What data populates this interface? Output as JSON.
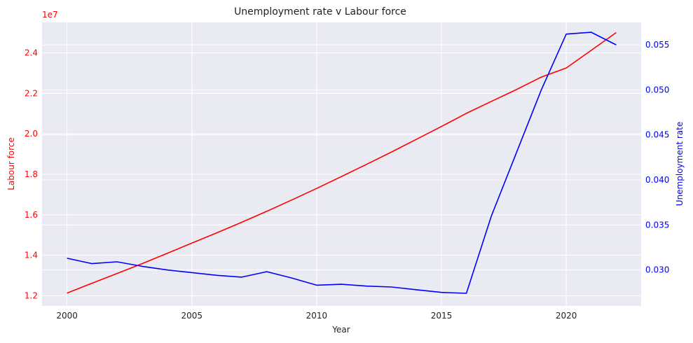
{
  "chart_data": {
    "type": "line",
    "title": "Unemployment rate v Labour force",
    "xlabel": "Year",
    "ylabel_left": "Labour force",
    "ylabel_right": "Unemployment rate",
    "left_axis_multiplier": "1e7",
    "x": [
      2000,
      2001,
      2002,
      2003,
      2004,
      2005,
      2006,
      2007,
      2008,
      2009,
      2010,
      2011,
      2012,
      2013,
      2014,
      2015,
      2016,
      2017,
      2018,
      2019,
      2020,
      2021,
      2022
    ],
    "xlim": [
      1999,
      2023
    ],
    "x_ticks": [
      2000,
      2005,
      2010,
      2015,
      2020
    ],
    "x_tick_labels": [
      "2000",
      "2005",
      "2010",
      "2015",
      "2020"
    ],
    "ylim_left": [
      1.15,
      2.55
    ],
    "ylim_right": [
      0.026,
      0.0575
    ],
    "left_ticks": [
      1.2,
      1.4,
      1.6,
      1.8,
      2.0,
      2.2,
      2.4
    ],
    "left_tick_labels": [
      "1.2",
      "1.4",
      "1.6",
      "1.8",
      "2.0",
      "2.2",
      "2.4"
    ],
    "right_ticks": [
      0.03,
      0.035,
      0.04,
      0.045,
      0.05,
      0.055
    ],
    "right_tick_labels": [
      "0.030",
      "0.035",
      "0.040",
      "0.045",
      "0.050",
      "0.055"
    ],
    "grid": true,
    "series": [
      {
        "axis": "left",
        "color": "#ff0000",
        "values": [
          1.213,
          1.262,
          1.31,
          1.358,
          1.409,
          1.46,
          1.511,
          1.563,
          1.617,
          1.673,
          1.73,
          1.789,
          1.849,
          1.91,
          1.973,
          2.036,
          2.101,
          2.16,
          2.218,
          2.28,
          2.325,
          2.412,
          2.5
        ]
      },
      {
        "axis": "right",
        "color": "#0000ff",
        "values": [
          0.0313,
          0.0307,
          0.0309,
          0.0304,
          0.03,
          0.0297,
          0.0294,
          0.0292,
          0.0298,
          0.0291,
          0.0283,
          0.0284,
          0.0282,
          0.0281,
          0.0278,
          0.0275,
          0.0274,
          0.036,
          0.043,
          0.05,
          0.0562,
          0.0564,
          0.055
        ]
      }
    ],
    "colors": {
      "background": "#eaeaf2",
      "grid": "#ffffff",
      "left_axis": "#ff0000",
      "right_axis": "#0000ff"
    }
  }
}
